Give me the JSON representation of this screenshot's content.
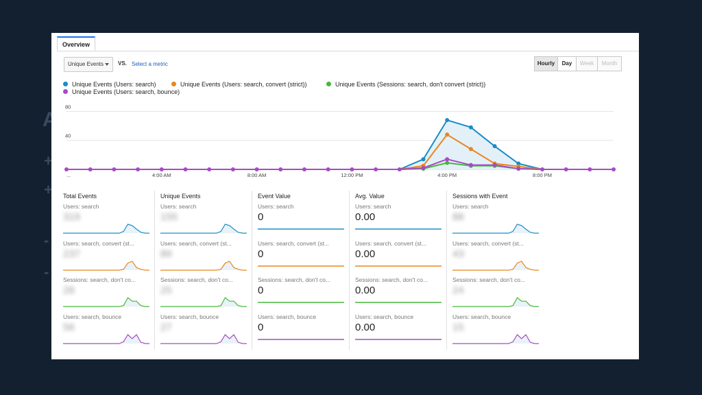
{
  "tab": {
    "label": "Overview"
  },
  "controls": {
    "metric_dropdown": "Unique Events",
    "vs_label": "VS.",
    "select_metric_link": "Select a metric",
    "granularity": [
      {
        "label": "Hourly",
        "state": "active"
      },
      {
        "label": "Day",
        "state": "enabled"
      },
      {
        "label": "Week",
        "state": "disabled"
      },
      {
        "label": "Month",
        "state": "disabled"
      }
    ]
  },
  "legend": [
    {
      "label": "Unique Events (Users: search)",
      "color": "#1a8dc6"
    },
    {
      "label": "Unique Events (Users: search, convert (strict))",
      "color": "#e8861d"
    },
    {
      "label": "Unique Events (Sessions: search, don't convert (strict))",
      "color": "#46b83a"
    },
    {
      "label": "Unique Events (Users: search, bounce)",
      "color": "#a64bc4"
    }
  ],
  "chart_data": {
    "type": "line",
    "x": [
      "...",
      "",
      "",
      "",
      "4:00 AM",
      "",
      "",
      "",
      "8:00 AM",
      "",
      "",
      "",
      "12:00 PM",
      "",
      "",
      "",
      "4:00 PM",
      "",
      "",
      "",
      "8:00 PM",
      "",
      "",
      ""
    ],
    "y_ticks": [
      80,
      40
    ],
    "ylim": [
      0,
      88
    ],
    "series": [
      {
        "name": "Unique Events (Users: search)",
        "color": "#1a8dc6",
        "values": [
          0,
          0,
          0,
          0,
          0,
          0,
          0,
          0,
          0,
          0,
          0,
          0,
          0,
          0,
          0,
          14,
          68,
          58,
          32,
          8,
          0,
          0,
          0,
          0
        ]
      },
      {
        "name": "Unique Events (Users: search, convert (strict))",
        "color": "#e8861d",
        "values": [
          0,
          0,
          0,
          0,
          0,
          0,
          0,
          0,
          0,
          0,
          0,
          0,
          0,
          0,
          0,
          5,
          48,
          28,
          8,
          4,
          0,
          0,
          0,
          0
        ]
      },
      {
        "name": "Unique Events (Sessions: search, don't convert (strict))",
        "color": "#46b83a",
        "values": [
          0,
          0,
          0,
          0,
          0,
          0,
          0,
          0,
          0,
          0,
          0,
          0,
          0,
          0,
          0,
          1,
          9,
          5,
          5,
          1,
          0,
          0,
          0,
          0
        ]
      },
      {
        "name": "Unique Events (Users: search, bounce)",
        "color": "#a64bc4",
        "values": [
          0,
          0,
          0,
          0,
          0,
          0,
          0,
          0,
          0,
          0,
          0,
          0,
          0,
          0,
          0,
          2,
          14,
          6,
          6,
          1,
          0,
          0,
          0,
          0
        ]
      }
    ]
  },
  "metrics": {
    "columns": [
      {
        "title": "Total Events",
        "blurred": true,
        "rows": [
          {
            "label": "Users: search",
            "value": "319"
          },
          {
            "label": "Users: search, convert (st...",
            "value": "237"
          },
          {
            "label": "Sessions: search, don't co...",
            "value": "28"
          },
          {
            "label": "Users: search, bounce",
            "value": "56"
          }
        ]
      },
      {
        "title": "Unique Events",
        "blurred": true,
        "rows": [
          {
            "label": "Users: search",
            "value": "155"
          },
          {
            "label": "Users: search, convert (st...",
            "value": "89"
          },
          {
            "label": "Sessions: search, don't co...",
            "value": "25"
          },
          {
            "label": "Users: search, bounce",
            "value": "27"
          }
        ]
      },
      {
        "title": "Event Value",
        "blurred": false,
        "rows": [
          {
            "label": "Users: search",
            "value": "0"
          },
          {
            "label": "Users: search, convert (st...",
            "value": "0"
          },
          {
            "label": "Sessions: search, don't co...",
            "value": "0"
          },
          {
            "label": "Users: search, bounce",
            "value": "0"
          }
        ]
      },
      {
        "title": "Avg. Value",
        "blurred": false,
        "rows": [
          {
            "label": "Users: search",
            "value": "0.00"
          },
          {
            "label": "Users: search, convert (st...",
            "value": "0.00"
          },
          {
            "label": "Sessions: search, don't co...",
            "value": "0.00"
          },
          {
            "label": "Users: search, bounce",
            "value": "0.00"
          }
        ]
      },
      {
        "title": "Sessions with Event",
        "blurred": true,
        "rows": [
          {
            "label": "Users: search",
            "value": "88"
          },
          {
            "label": "Users: search, convert (st...",
            "value": "43"
          },
          {
            "label": "Sessions: search, don't co...",
            "value": "24"
          },
          {
            "label": "Users: search, bounce",
            "value": "15"
          }
        ]
      }
    ]
  }
}
